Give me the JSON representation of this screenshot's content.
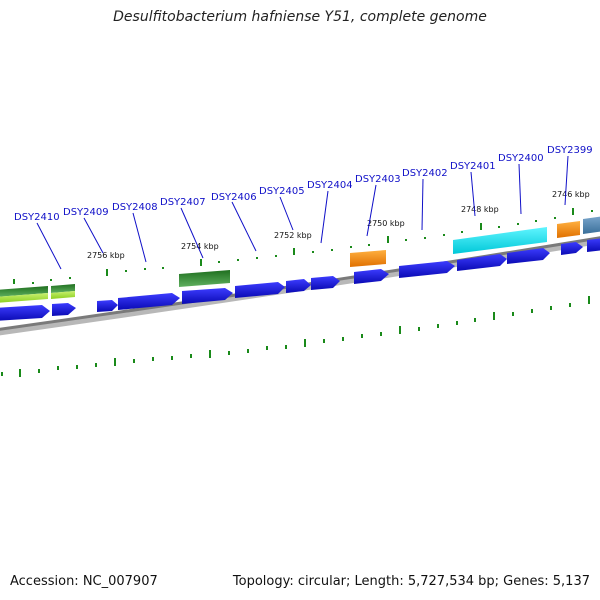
{
  "title": "Desulfitobacterium hafniense Y51, complete genome",
  "footer": {
    "accession": "Accession: NC_007907",
    "summary": "Topology: circular; Length: 5,727,534 bp; Genes: 5,137"
  },
  "genes": [
    "DSY2410",
    "DSY2409",
    "DSY2408",
    "DSY2407",
    "DSY2406",
    "DSY2405",
    "DSY2404",
    "DSY2403",
    "DSY2402",
    "DSY2401",
    "DSY2400",
    "DSY2399"
  ],
  "ticks": [
    "2756 kbp",
    "2754 kbp",
    "2752 kbp",
    "2750 kbp",
    "2748 kbp",
    "2746 kbp"
  ],
  "colors": {
    "gene_blue": "#1414e6",
    "dark_green": "#2e8b2e",
    "light_green": "#a6e22e",
    "orange": "#ff8c00",
    "cyan": "#00e5ee",
    "steel_blue": "#4682b4",
    "backbone": "#808080",
    "tick_green": "#1a8a1a",
    "label_blue": "#1010c8"
  }
}
